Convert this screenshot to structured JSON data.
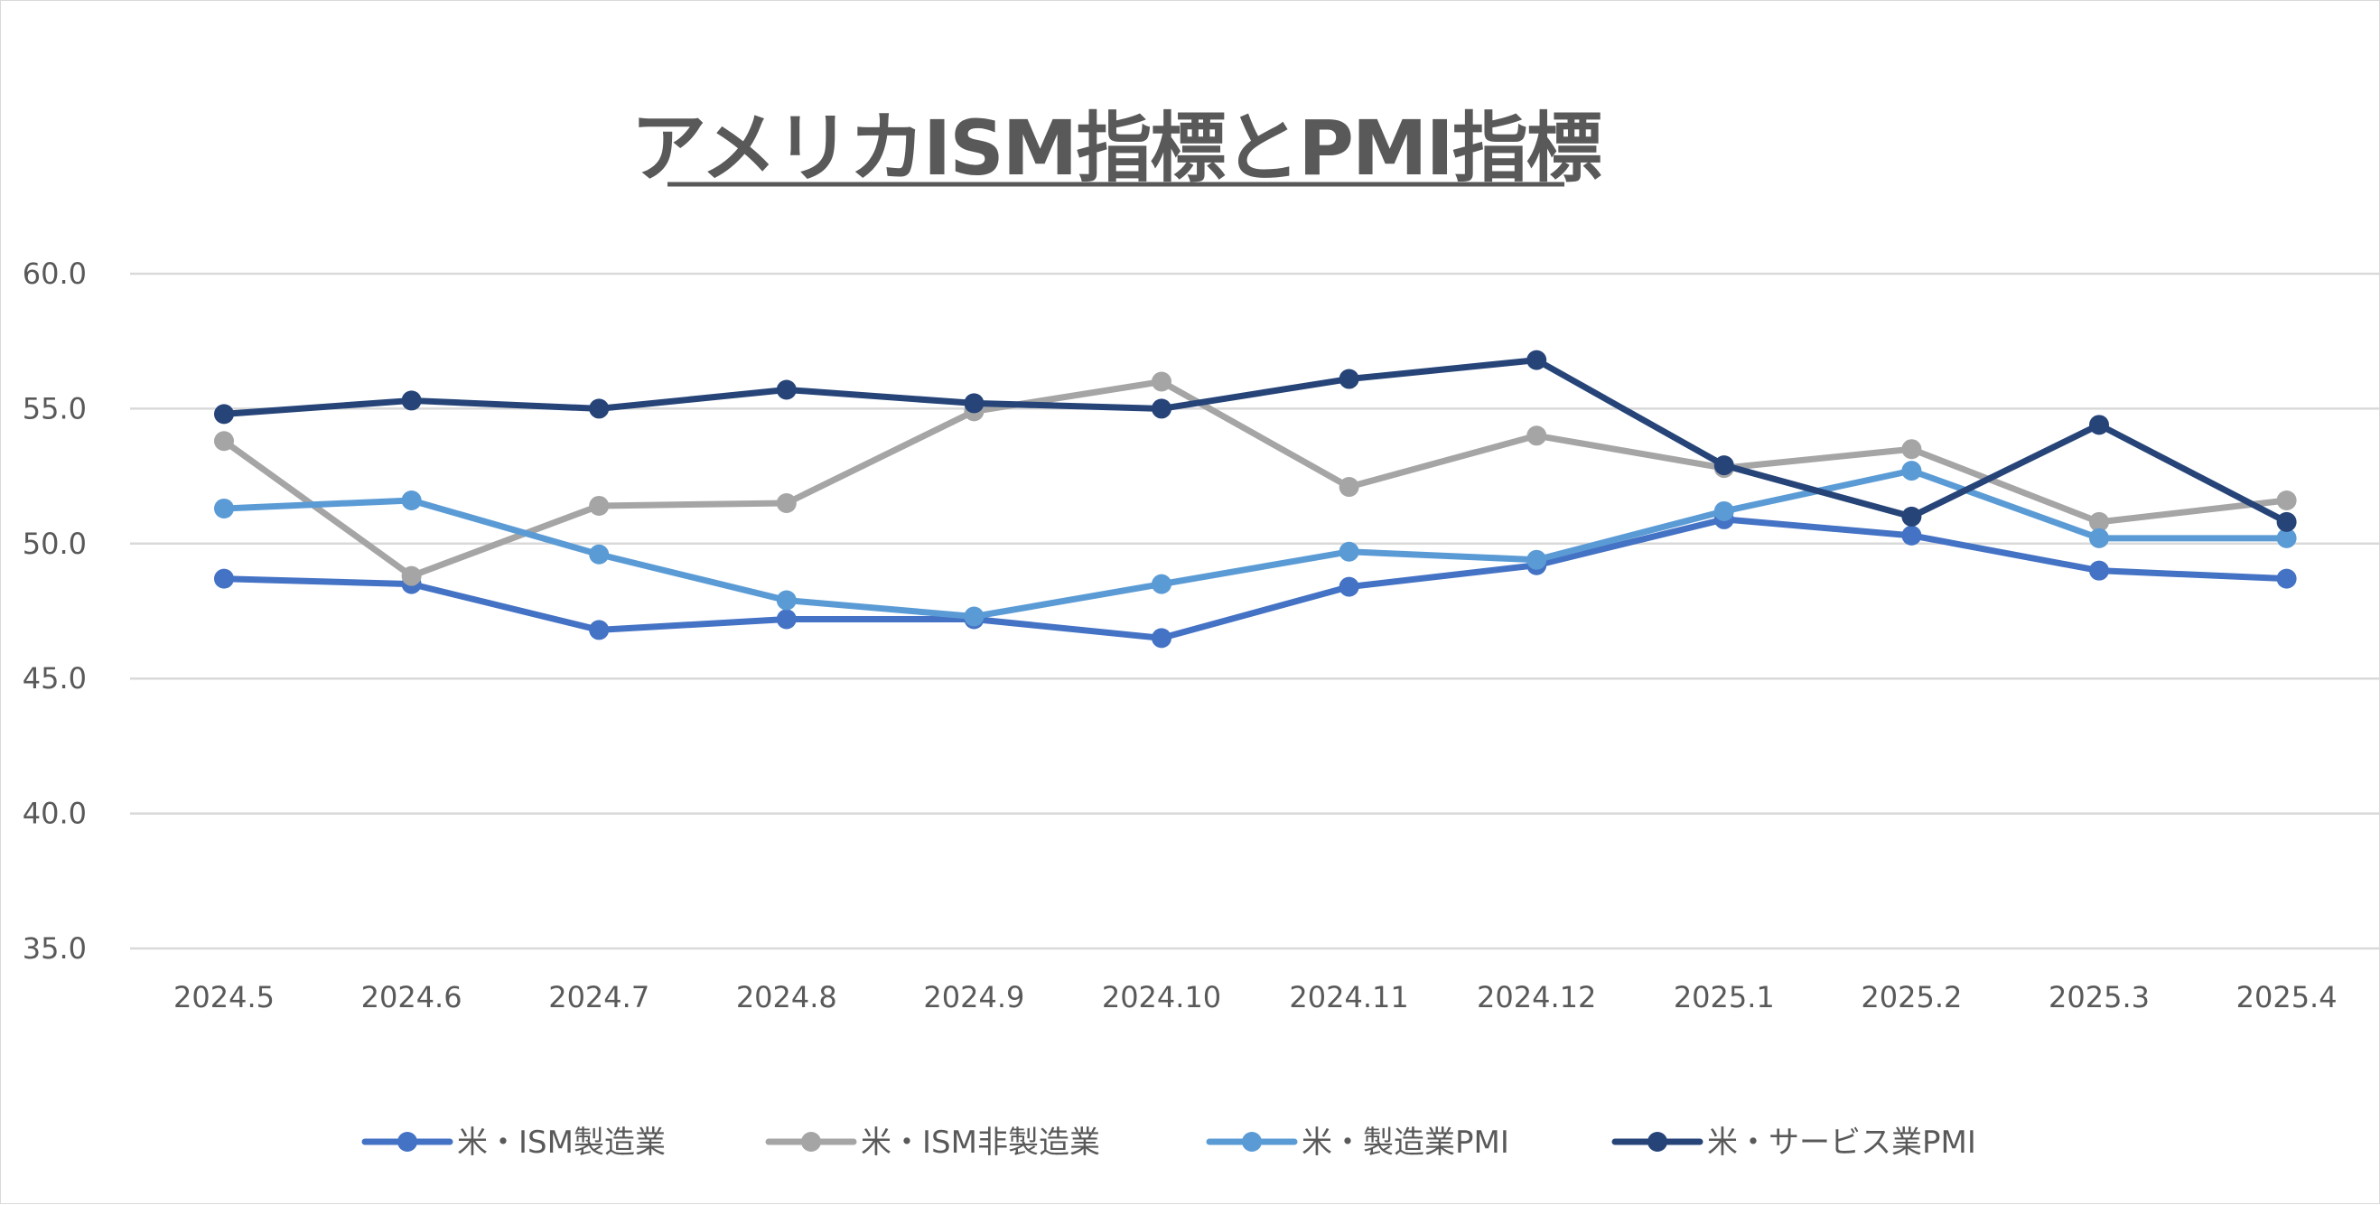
{
  "chart_data": {
    "type": "line",
    "title": "アメリカISM指標とPMI指標",
    "xlabel": "",
    "ylabel": "",
    "categories": [
      "2024.5",
      "2024.6",
      "2024.7",
      "2024.8",
      "2024.9",
      "2024.10",
      "2024.11",
      "2024.12",
      "2025.1",
      "2025.2",
      "2025.3",
      "2025.4"
    ],
    "ylim": [
      35.0,
      60.0
    ],
    "yticks": [
      "35.0",
      "40.0",
      "45.0",
      "50.0",
      "55.0",
      "60.0"
    ],
    "grid": true,
    "legend_position": "bottom",
    "series": [
      {
        "name": "米・ISM製造業",
        "color": "#4472C4",
        "values": [
          48.7,
          48.5,
          46.8,
          47.2,
          47.2,
          46.5,
          48.4,
          49.2,
          50.9,
          50.3,
          49.0,
          48.7
        ]
      },
      {
        "name": "米・ISM非製造業",
        "color": "#A5A5A5",
        "values": [
          53.8,
          48.8,
          51.4,
          51.5,
          54.9,
          56.0,
          52.1,
          54.0,
          52.8,
          53.5,
          50.8,
          51.6
        ]
      },
      {
        "name": "米・製造業PMI",
        "color": "#5B9BD5",
        "values": [
          51.3,
          51.6,
          49.6,
          47.9,
          47.3,
          48.5,
          49.7,
          49.4,
          51.2,
          52.7,
          50.2,
          50.2
        ]
      },
      {
        "name": "米・サービス業PMI",
        "color": "#264478",
        "values": [
          54.8,
          55.3,
          55.0,
          55.7,
          55.2,
          55.0,
          56.1,
          56.8,
          52.9,
          51.0,
          54.4,
          50.8
        ]
      }
    ]
  }
}
